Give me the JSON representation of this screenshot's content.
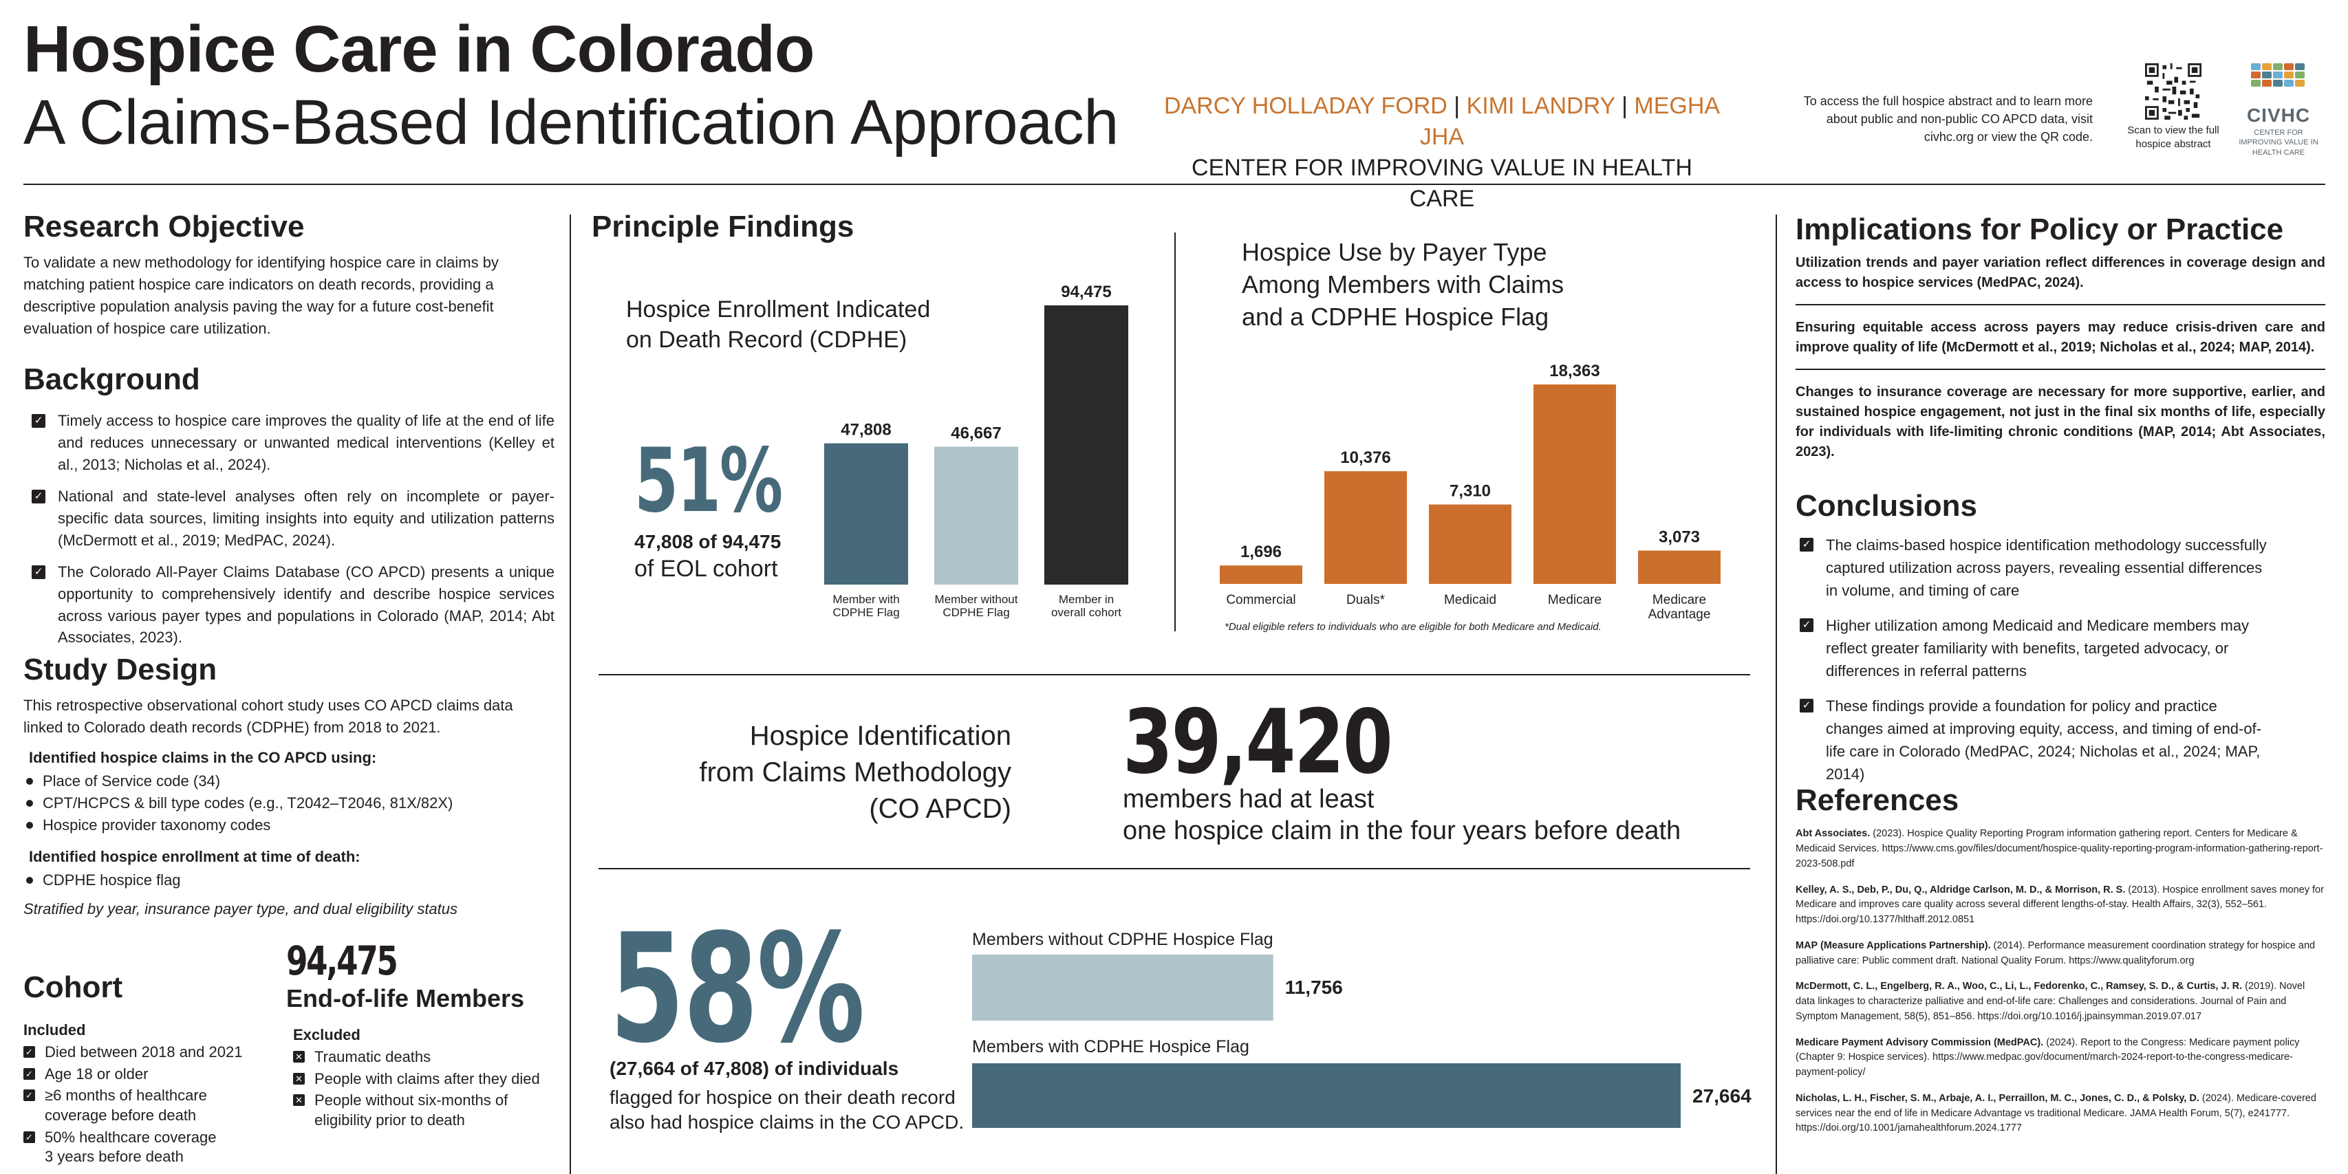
{
  "header": {
    "title_line1": "Hospice Care in Colorado",
    "title_line2": "A Claims-Based Identification Approach",
    "authors": [
      "DARCY HOLLADAY FORD",
      "KIMI LANDRY",
      "MEGHA JHA"
    ],
    "author_separator": "|",
    "affiliation": "CENTER FOR IMPROVING VALUE IN HEALTH CARE",
    "access_note": "To access the full hospice abstract and to learn more about public and non-public CO APCD data, visit civhc.org or view the QR code.",
    "qr_caption": "Scan to view the full hospice abstract",
    "logo_name": "CIVHC",
    "logo_tagline": "CENTER FOR IMPROVING VALUE IN HEALTH CARE"
  },
  "research_objective": {
    "heading": "Research Objective",
    "text": "To validate a new methodology for identifying hospice care in claims by matching patient hospice care indicators on death records, providing a descriptive population analysis paving the way for a future cost-benefit evaluation of hospice care utilization."
  },
  "background": {
    "heading": "Background",
    "items": [
      "Timely access to hospice care improves the quality of life at the end of life and reduces unnecessary or unwanted medical interventions (Kelley et al., 2013; Nicholas et al., 2024).",
      "National and state-level analyses often rely on incomplete or payer-specific data sources, limiting insights into equity and utilization patterns (McDermott et al., 2019; MedPAC, 2024).",
      "The Colorado All-Payer Claims Database (CO APCD) presents a unique opportunity to comprehensively identify and describe hospice services across various payer types and populations in Colorado (MAP, 2014; Abt Associates, 2023)."
    ]
  },
  "study_design": {
    "heading": "Study Design",
    "intro": "This retrospective observational cohort study uses CO APCD claims data linked to Colorado death records (CDPHE) from 2018 to 2021.",
    "claims_heading": "Identified hospice claims in the CO APCD using:",
    "claims_items": [
      "Place of Service code (34)",
      "CPT/HCPCS & bill type codes (e.g., T2042–T2046, 81X/82X)",
      "Hospice provider taxonomy codes"
    ],
    "enrollment_heading": "Identified hospice enrollment at time of death:",
    "enrollment_items": [
      "CDPHE hospice flag"
    ],
    "stratified": "Stratified by year, insurance payer type, and dual eligibility status"
  },
  "cohort": {
    "heading": "Cohort",
    "total": "94,475",
    "total_label": "End-of-life Members",
    "included_heading": "Included",
    "included": [
      "Died between 2018 and 2021",
      "Age 18 or older",
      "≥6 months of healthcare coverage before death",
      "50% healthcare coverage 3 years before death"
    ],
    "excluded_heading": "Excluded",
    "excluded": [
      "Traumatic deaths",
      "People with claims after they died",
      "People without six-months of eligibility prior to death"
    ]
  },
  "findings": {
    "heading": "Principle Findings",
    "enrollment_title_line1": "Hospice Enrollment Indicated",
    "enrollment_title_line2": "on Death Record (CDPHE)",
    "enrollment_pct": "51%",
    "enrollment_pct_sub1": "47,808 of 94,475",
    "enrollment_pct_sub2": "of EOL cohort",
    "payer_title_line1": "Hospice Use by Payer Type",
    "payer_title_line2": "Among Members with Claims",
    "payer_title_line3": "and a CDPHE Hospice Flag",
    "payer_footnote": "*Dual eligible refers to individuals who are eligible for both Medicare and Medicaid.",
    "method_title_line1": "Hospice Identification",
    "method_title_line2": "from Claims Methodology",
    "method_title_line3": "(CO APCD)",
    "method_number": "39,420",
    "method_text_line1": "members had at least",
    "method_text_line2": "one hospice claim in the four years before death",
    "match_pct": "58%",
    "match_sub_bold": "(27,664 of 47,808) of individuals",
    "match_sub_line2": "flagged for hospice on their death record",
    "match_sub_line3": "also had hospice claims in the CO APCD."
  },
  "chart_data": [
    {
      "type": "bar",
      "title": "Hospice Enrollment Indicated on Death Record (CDPHE)",
      "categories": [
        "Member with CDPHE Flag",
        "Member without CDPHE Flag",
        "Member in overall cohort"
      ],
      "category_lines": [
        [
          "Member with",
          "CDPHE Flag"
        ],
        [
          "Member without",
          "CDPHE Flag"
        ],
        [
          "Member in",
          "overall cohort"
        ]
      ],
      "values": [
        47808,
        46667,
        94475
      ],
      "value_labels": [
        "47,808",
        "46,667",
        "94,475"
      ],
      "colors": [
        "#466a79",
        "#aec3ca",
        "#2a2a2c"
      ],
      "ylim": [
        0,
        94475
      ]
    },
    {
      "type": "bar",
      "title": "Hospice Use by Payer Type Among Members with Claims and a CDPHE Hospice Flag",
      "categories": [
        "Commercial",
        "Duals*",
        "Medicaid",
        "Medicare",
        "Medicare Advantage"
      ],
      "category_lines": [
        [
          "Commercial"
        ],
        [
          "Duals*"
        ],
        [
          "Medicaid"
        ],
        [
          "Medicare"
        ],
        [
          "Medicare",
          "Advantage"
        ]
      ],
      "values": [
        1696,
        10376,
        7310,
        18363,
        3073
      ],
      "value_labels": [
        "1,696",
        "10,376",
        "7,310",
        "18,363",
        "3,073"
      ],
      "colors": [
        "#cd6f2c",
        "#cd6f2c",
        "#cd6f2c",
        "#cd6f2c",
        "#cd6f2c"
      ],
      "ylim": [
        0,
        18363
      ]
    },
    {
      "type": "bar",
      "orientation": "horizontal",
      "categories": [
        "Members without CDPHE Hospice Flag",
        "Members with CDPHE Hospice Flag"
      ],
      "values": [
        11756,
        27664
      ],
      "value_labels": [
        "11,756",
        "27,664"
      ],
      "colors": [
        "#aec3ca",
        "#466a79"
      ],
      "xlim": [
        0,
        27664
      ]
    }
  ],
  "implications": {
    "heading": "Implications for Policy or Practice",
    "items": [
      "Utilization trends and payer variation reflect differences in coverage design and access to hospice services (MedPAC, 2024).",
      "Ensuring equitable access across payers may reduce crisis-driven care and improve quality of life (McDermott et al., 2019; Nicholas et al., 2024; MAP, 2014).",
      "Changes to insurance coverage are necessary for more supportive, earlier, and sustained hospice engagement, not just in the final six months of life, especially for individuals with life-limiting chronic conditions (MAP, 2014; Abt Associates, 2023)."
    ]
  },
  "conclusions": {
    "heading": "Conclusions",
    "items": [
      "The claims-based hospice identification methodology successfully captured utilization across payers, revealing essential differences in volume, and timing of care",
      "Higher utilization among Medicaid and Medicare members may reflect greater familiarity with benefits, targeted advocacy, or differences in referral patterns",
      "These findings provide a foundation for policy and practice changes aimed at improving equity, access, and timing of end-of-life care in Colorado (MedPAC, 2024; Nicholas et al., 2024; MAP, 2014)"
    ]
  },
  "references": {
    "heading": "References",
    "items": [
      {
        "author": "Abt Associates.",
        "text": " (2023). Hospice Quality Reporting Program information gathering report. Centers for Medicare & Medicaid Services. https://www.cms.gov/files/document/hospice-quality-reporting-program-information-gathering-report-2023-508.pdf"
      },
      {
        "author": "Kelley, A. S., Deb, P., Du, Q., Aldridge Carlson, M. D., & Morrison, R. S.",
        "text": " (2013). Hospice enrollment saves money for Medicare and improves care quality across several different lengths-of-stay. Health Affairs, 32(3), 552–561. https://doi.org/10.1377/hlthaff.2012.0851"
      },
      {
        "author": "MAP (Measure Applications Partnership).",
        "text": " (2014). Performance measurement coordination strategy for hospice and palliative care: Public comment draft. National Quality Forum. https://www.qualityforum.org"
      },
      {
        "author": "McDermott, C. L., Engelberg, R. A., Woo, C., Li, L., Fedorenko, C., Ramsey, S. D., & Curtis, J. R.",
        "text": " (2019). Novel data linkages to characterize palliative and end-of-life care: Challenges and considerations. Journal of Pain and Symptom Management, 58(5), 851–856. https://doi.org/10.1016/j.jpainsymman.2019.07.017"
      },
      {
        "author": "Medicare Payment Advisory Commission (MedPAC).",
        "text": " (2024). Report to the Congress: Medicare payment policy (Chapter 9: Hospice services). https://www.medpac.gov/document/march-2024-report-to-the-congress-medicare-payment-policy/"
      },
      {
        "author": "Nicholas, L. H., Fischer, S. M., Arbaje, A. I., Perraillon, M. C., Jones, C. D., & Polsky, D.",
        "text": " (2024). Medicare-covered services near the end of life in Medicare Advantage vs traditional Medicare. JAMA Health Forum, 5(7), e241777. https://doi.org/10.1001/jamahealthforum.2024.1777"
      }
    ]
  }
}
